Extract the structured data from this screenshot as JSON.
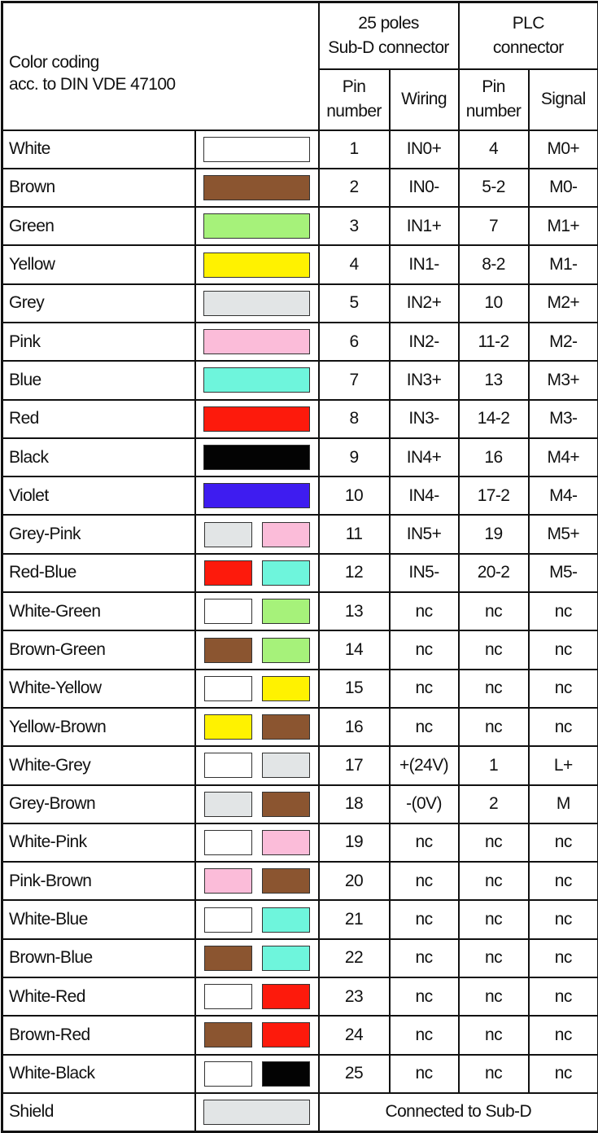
{
  "header": {
    "title_line1": "Color coding",
    "title_line2": "acc. to DIN VDE 47100",
    "subd_group_line1": "25 poles",
    "subd_group_line2": "Sub-D connector",
    "plc_group_line1": "PLC",
    "plc_group_line2": "connector",
    "pin_number_line1": "Pin",
    "pin_number_line2": "number",
    "wiring": "Wiring",
    "signal": "Signal"
  },
  "colors": {
    "White": "#ffffff",
    "Brown": "#8b5530",
    "Green": "#a6f27a",
    "Yellow": "#fff200",
    "Grey": "#e2e5e6",
    "Pink": "#fbbcd9",
    "Blue": "#6ef5dc",
    "Red": "#fd1a0c",
    "Black": "#030303",
    "Violet": "#3e1cf0"
  },
  "rows": [
    {
      "name": "White",
      "swatch": [
        "White"
      ],
      "pin": "1",
      "wiring": "IN0+",
      "plc_pin": "4",
      "signal": "M0+"
    },
    {
      "name": "Brown",
      "swatch": [
        "Brown"
      ],
      "pin": "2",
      "wiring": "IN0-",
      "plc_pin": "5-2",
      "signal": "M0-"
    },
    {
      "name": "Green",
      "swatch": [
        "Green"
      ],
      "pin": "3",
      "wiring": "IN1+",
      "plc_pin": "7",
      "signal": "M1+"
    },
    {
      "name": "Yellow",
      "swatch": [
        "Yellow"
      ],
      "pin": "4",
      "wiring": "IN1-",
      "plc_pin": "8-2",
      "signal": "M1-"
    },
    {
      "name": "Grey",
      "swatch": [
        "Grey"
      ],
      "pin": "5",
      "wiring": "IN2+",
      "plc_pin": "10",
      "signal": "M2+"
    },
    {
      "name": "Pink",
      "swatch": [
        "Pink"
      ],
      "pin": "6",
      "wiring": "IN2-",
      "plc_pin": "11-2",
      "signal": "M2-"
    },
    {
      "name": "Blue",
      "swatch": [
        "Blue"
      ],
      "pin": "7",
      "wiring": "IN3+",
      "plc_pin": "13",
      "signal": "M3+"
    },
    {
      "name": "Red",
      "swatch": [
        "Red"
      ],
      "pin": "8",
      "wiring": "IN3-",
      "plc_pin": "14-2",
      "signal": "M3-"
    },
    {
      "name": "Black",
      "swatch": [
        "Black"
      ],
      "pin": "9",
      "wiring": "IN4+",
      "plc_pin": "16",
      "signal": "M4+"
    },
    {
      "name": "Violet",
      "swatch": [
        "Violet"
      ],
      "pin": "10",
      "wiring": "IN4-",
      "plc_pin": "17-2",
      "signal": "M4-"
    },
    {
      "name": "Grey-Pink",
      "swatch": [
        "Grey",
        "Pink"
      ],
      "pin": "11",
      "wiring": "IN5+",
      "plc_pin": "19",
      "signal": "M5+"
    },
    {
      "name": "Red-Blue",
      "swatch": [
        "Red",
        "Blue"
      ],
      "pin": "12",
      "wiring": "IN5-",
      "plc_pin": "20-2",
      "signal": "M5-"
    },
    {
      "name": "White-Green",
      "swatch": [
        "White",
        "Green"
      ],
      "pin": "13",
      "wiring": "nc",
      "plc_pin": "nc",
      "signal": "nc"
    },
    {
      "name": "Brown-Green",
      "swatch": [
        "Brown",
        "Green"
      ],
      "pin": "14",
      "wiring": "nc",
      "plc_pin": "nc",
      "signal": "nc"
    },
    {
      "name": "White-Yellow",
      "swatch": [
        "White",
        "Yellow"
      ],
      "pin": "15",
      "wiring": "nc",
      "plc_pin": "nc",
      "signal": "nc"
    },
    {
      "name": "Yellow-Brown",
      "swatch": [
        "Yellow",
        "Brown"
      ],
      "pin": "16",
      "wiring": "nc",
      "plc_pin": "nc",
      "signal": "nc"
    },
    {
      "name": "White-Grey",
      "swatch": [
        "White",
        "Grey"
      ],
      "pin": "17",
      "wiring": "+(24V)",
      "plc_pin": "1",
      "signal": "L+"
    },
    {
      "name": "Grey-Brown",
      "swatch": [
        "Grey",
        "Brown"
      ],
      "pin": "18",
      "wiring": "-(0V)",
      "plc_pin": "2",
      "signal": "M"
    },
    {
      "name": "White-Pink",
      "swatch": [
        "White",
        "Pink"
      ],
      "pin": "19",
      "wiring": "nc",
      "plc_pin": "nc",
      "signal": "nc"
    },
    {
      "name": "Pink-Brown",
      "swatch": [
        "Pink",
        "Brown"
      ],
      "pin": "20",
      "wiring": "nc",
      "plc_pin": "nc",
      "signal": "nc"
    },
    {
      "name": "White-Blue",
      "swatch": [
        "White",
        "Blue"
      ],
      "pin": "21",
      "wiring": "nc",
      "plc_pin": "nc",
      "signal": "nc"
    },
    {
      "name": "Brown-Blue",
      "swatch": [
        "Brown",
        "Blue"
      ],
      "pin": "22",
      "wiring": "nc",
      "plc_pin": "nc",
      "signal": "nc"
    },
    {
      "name": "White-Red",
      "swatch": [
        "White",
        "Red"
      ],
      "pin": "23",
      "wiring": "nc",
      "plc_pin": "nc",
      "signal": "nc"
    },
    {
      "name": "Brown-Red",
      "swatch": [
        "Brown",
        "Red"
      ],
      "pin": "24",
      "wiring": "nc",
      "plc_pin": "nc",
      "signal": "nc"
    },
    {
      "name": "White-Black",
      "swatch": [
        "White",
        "Black"
      ],
      "pin": "25",
      "wiring": "nc",
      "plc_pin": "nc",
      "signal": "nc"
    }
  ],
  "shield": {
    "name": "Shield",
    "swatch": [
      "Grey"
    ],
    "note": "Connected to Sub-D"
  }
}
